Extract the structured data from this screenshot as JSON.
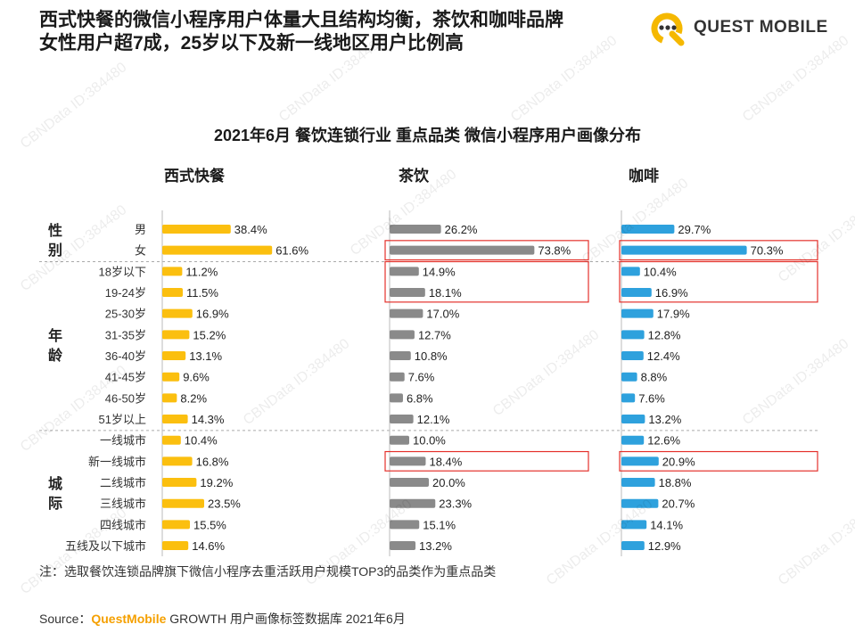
{
  "headline_line1": "西式快餐的微信小程序用户体量大且结构均衡，茶饮和咖啡品牌",
  "headline_line2": "女性用户超7成，25岁以下及新一线地区用户比例高",
  "logo_text": "QUEST MOBILE",
  "watermark_text": "CBNData ID:384480",
  "note": "注：选取餐饮连锁品牌旗下微信小程序去重活跃用户规模TOP3的品类作为重点品类",
  "source": {
    "prefix": "Source：",
    "brand": "QuestMobile",
    "rest": " GROWTH 用户画像标签数据库 2021年6月"
  },
  "colors": {
    "西式快餐": "#fbbf0f",
    "茶饮": "#8a8a8a",
    "咖啡": "#2ea1dd",
    "highlight": "#e4312b",
    "divider": "#aaaaaa"
  },
  "chart_data": {
    "type": "bar",
    "title": "2021年6月 餐饮连锁行业 重点品类 微信小程序用户画像分布",
    "groups": [
      {
        "label": "性别",
        "categories": [
          "男",
          "女"
        ]
      },
      {
        "label": "年龄",
        "categories": [
          "18岁以下",
          "19-24岁",
          "25-30岁",
          "31-35岁",
          "36-40岁",
          "41-45岁",
          "46-50岁",
          "51岁以上"
        ]
      },
      {
        "label": "城际",
        "categories": [
          "一线城市",
          "新一线城市",
          "二线城市",
          "三线城市",
          "四线城市",
          "五线及以下城市"
        ]
      }
    ],
    "categories": [
      "男",
      "女",
      "18岁以下",
      "19-24岁",
      "25-30岁",
      "31-35岁",
      "36-40岁",
      "41-45岁",
      "46-50岁",
      "51岁以上",
      "一线城市",
      "新一线城市",
      "二线城市",
      "三线城市",
      "四线城市",
      "五线及以下城市"
    ],
    "series": [
      {
        "name": "西式快餐",
        "values": [
          38.4,
          61.6,
          11.2,
          11.5,
          16.9,
          15.2,
          13.1,
          9.6,
          8.2,
          14.3,
          10.4,
          16.8,
          19.2,
          23.5,
          15.5,
          14.6
        ]
      },
      {
        "name": "茶饮",
        "values": [
          26.2,
          73.8,
          14.9,
          18.1,
          17.0,
          12.7,
          10.8,
          7.6,
          6.8,
          12.1,
          10.0,
          18.4,
          20.0,
          23.3,
          15.1,
          13.2
        ]
      },
      {
        "name": "咖啡",
        "values": [
          29.7,
          70.3,
          10.4,
          16.9,
          17.9,
          12.8,
          12.4,
          8.8,
          7.6,
          13.2,
          12.6,
          20.9,
          18.8,
          20.7,
          14.1,
          12.9
        ]
      }
    ],
    "value_suffix": "%",
    "highlights": [
      {
        "series": "茶饮",
        "categories": [
          "女"
        ]
      },
      {
        "series": "茶饮",
        "categories": [
          "18岁以下",
          "19-24岁"
        ]
      },
      {
        "series": "茶饮",
        "categories": [
          "新一线城市"
        ]
      },
      {
        "series": "咖啡",
        "categories": [
          "女"
        ]
      },
      {
        "series": "咖啡",
        "categories": [
          "18岁以下",
          "19-24岁"
        ]
      },
      {
        "series": "咖啡",
        "categories": [
          "新一线城市"
        ]
      }
    ]
  }
}
